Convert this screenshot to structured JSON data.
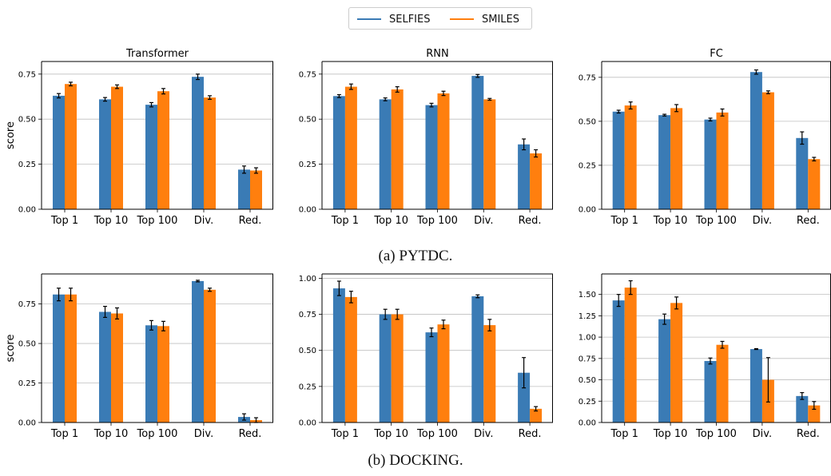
{
  "legend": {
    "items": [
      {
        "label": "SELFIES",
        "color": "#3a7bb5"
      },
      {
        "label": "SMILES",
        "color": "#ff7f0e"
      }
    ]
  },
  "captions": {
    "a": "(a) PYTDC.",
    "b": "(b) DOCKING."
  },
  "colors": {
    "selfies": "#3a7bb5",
    "smiles": "#ff7f0e",
    "grid": "#bfbfbf"
  },
  "chart_data": [
    {
      "type": "bar",
      "title": "Transformer",
      "ylabel": "score",
      "categories": [
        "Top 1",
        "Top 10",
        "Top 100",
        "Div.",
        "Red."
      ],
      "ylim": [
        0,
        0.82
      ],
      "yticks": [
        "0.00",
        "0.25",
        "0.50",
        "0.75"
      ],
      "grid": "y",
      "series": [
        {
          "name": "SELFIES",
          "values": [
            0.63,
            0.61,
            0.58,
            0.735,
            0.22
          ],
          "err": [
            0.012,
            0.01,
            0.012,
            0.015,
            0.02
          ]
        },
        {
          "name": "SMILES",
          "values": [
            0.695,
            0.68,
            0.655,
            0.62,
            0.215
          ],
          "err": [
            0.01,
            0.01,
            0.015,
            0.01,
            0.015
          ]
        }
      ]
    },
    {
      "type": "bar",
      "title": "RNN",
      "ylabel": "",
      "categories": [
        "Top 1",
        "Top 10",
        "Top 100",
        "Div.",
        "Red."
      ],
      "ylim": [
        0,
        0.82
      ],
      "yticks": [
        "0.00",
        "0.25",
        "0.50",
        "0.75"
      ],
      "grid": "y",
      "series": [
        {
          "name": "SELFIES",
          "values": [
            0.628,
            0.61,
            0.578,
            0.74,
            0.36
          ],
          "err": [
            0.008,
            0.008,
            0.01,
            0.008,
            0.03
          ]
        },
        {
          "name": "SMILES",
          "values": [
            0.68,
            0.665,
            0.643,
            0.61,
            0.31
          ],
          "err": [
            0.015,
            0.015,
            0.012,
            0.005,
            0.02
          ]
        }
      ]
    },
    {
      "type": "bar",
      "title": "FC",
      "ylabel": "",
      "categories": [
        "Top 1",
        "Top 10",
        "Top 100",
        "Div.",
        "Red."
      ],
      "ylim": [
        0,
        0.84
      ],
      "yticks": [
        "0.00",
        "0.25",
        "0.50",
        "0.75"
      ],
      "grid": "y",
      "series": [
        {
          "name": "SELFIES",
          "values": [
            0.555,
            0.535,
            0.51,
            0.78,
            0.405
          ],
          "err": [
            0.008,
            0.005,
            0.008,
            0.012,
            0.035
          ]
        },
        {
          "name": "SMILES",
          "values": [
            0.59,
            0.575,
            0.55,
            0.665,
            0.285
          ],
          "err": [
            0.02,
            0.02,
            0.02,
            0.008,
            0.01
          ]
        }
      ]
    },
    {
      "type": "bar",
      "title": "",
      "ylabel": "score",
      "categories": [
        "Top 1",
        "Top 10",
        "Top 100",
        "Div.",
        "Red."
      ],
      "ylim": [
        0,
        0.94
      ],
      "yticks": [
        "0.00",
        "0.25",
        "0.50",
        "0.75"
      ],
      "grid": "y",
      "series": [
        {
          "name": "SELFIES",
          "values": [
            0.81,
            0.7,
            0.615,
            0.895,
            0.035
          ],
          "err": [
            0.04,
            0.035,
            0.03,
            0.005,
            0.02
          ]
        },
        {
          "name": "SMILES",
          "values": [
            0.81,
            0.69,
            0.61,
            0.84,
            0.015
          ],
          "err": [
            0.04,
            0.035,
            0.03,
            0.01,
            0.015
          ]
        }
      ]
    },
    {
      "type": "bar",
      "title": "",
      "ylabel": "",
      "categories": [
        "Top 1",
        "Top 10",
        "Top 100",
        "Div.",
        "Red."
      ],
      "ylim": [
        0,
        1.03
      ],
      "yticks": [
        "0.00",
        "0.25",
        "0.50",
        "0.75",
        "1.00"
      ],
      "grid": "y",
      "series": [
        {
          "name": "SELFIES",
          "values": [
            0.93,
            0.75,
            0.625,
            0.875,
            0.345
          ],
          "err": [
            0.05,
            0.035,
            0.03,
            0.01,
            0.105
          ]
        },
        {
          "name": "SMILES",
          "values": [
            0.87,
            0.75,
            0.68,
            0.675,
            0.095
          ],
          "err": [
            0.04,
            0.035,
            0.03,
            0.04,
            0.015
          ]
        }
      ]
    },
    {
      "type": "bar",
      "title": "",
      "ylabel": "",
      "categories": [
        "Top 1",
        "Top 10",
        "Top 100",
        "Div.",
        "Red."
      ],
      "ylim": [
        0,
        1.74
      ],
      "yticks": [
        "0.00",
        "0.25",
        "0.50",
        "0.75",
        "1.00",
        "1.25",
        "1.50"
      ],
      "grid": "y",
      "series": [
        {
          "name": "SELFIES",
          "values": [
            1.43,
            1.21,
            0.72,
            0.86,
            0.31
          ],
          "err": [
            0.07,
            0.06,
            0.035,
            0.005,
            0.04
          ]
        },
        {
          "name": "SMILES",
          "values": [
            1.58,
            1.4,
            0.91,
            0.5,
            0.2
          ],
          "err": [
            0.08,
            0.07,
            0.04,
            0.26,
            0.045
          ]
        }
      ]
    }
  ]
}
